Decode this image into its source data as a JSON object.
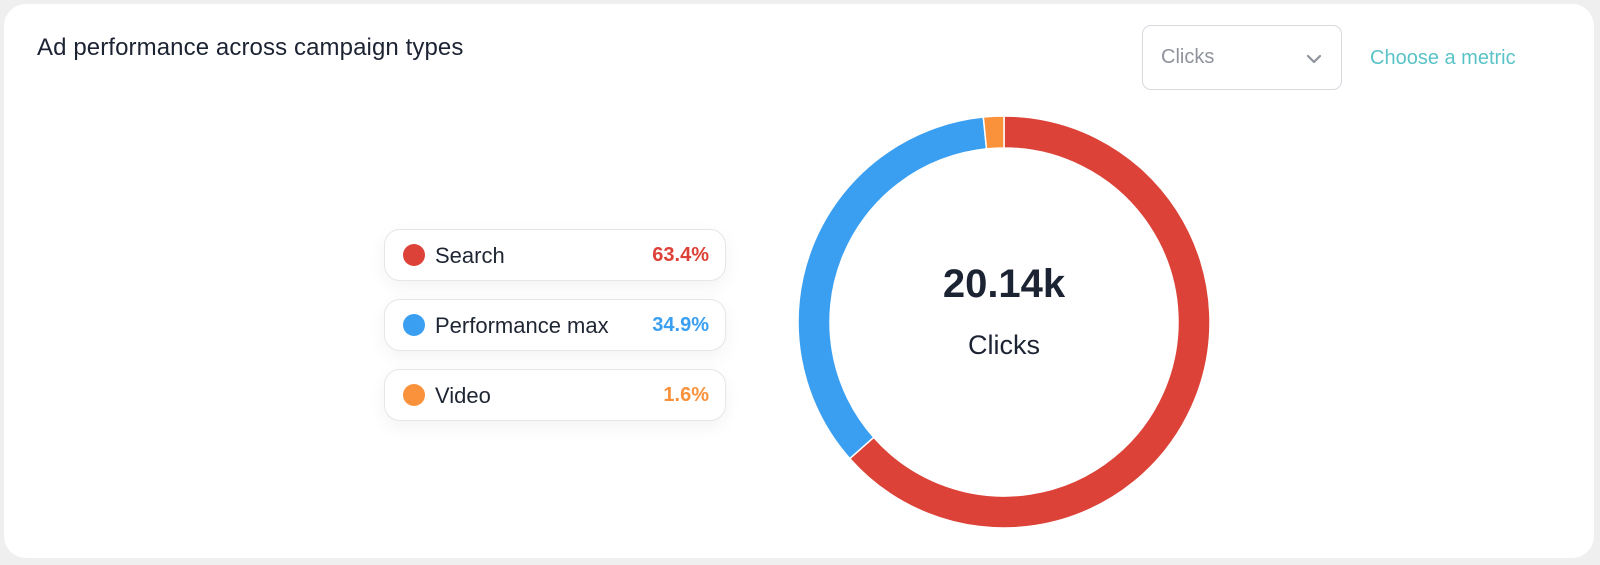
{
  "header": {
    "title": "Ad performance across campaign types",
    "metric_select": {
      "value": "Clicks",
      "icon": "chevron-down-icon"
    },
    "metric_link": "Choose a metric"
  },
  "chart_data": {
    "type": "pie",
    "variant": "donut",
    "center_value": "20.14k",
    "center_label": "Clicks",
    "legend_placement": "left",
    "series": [
      {
        "name": "Search",
        "value": 63.4,
        "label": "63.4%",
        "color": "#dc4237"
      },
      {
        "name": "Performance max",
        "value": 34.9,
        "label": "34.9%",
        "color": "#3a9ff1"
      },
      {
        "name": "Video",
        "value": 1.6,
        "label": "1.6%",
        "color": "#fa923c"
      }
    ]
  }
}
